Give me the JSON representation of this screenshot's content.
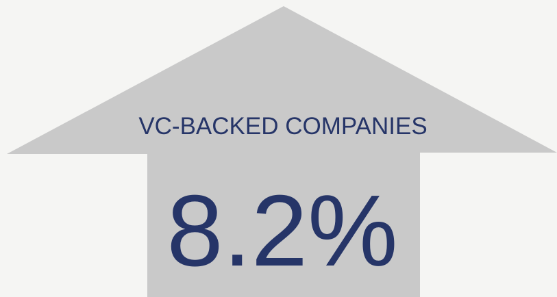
{
  "label": "VC-BACKED COMPANIES",
  "value": "8.2%"
}
